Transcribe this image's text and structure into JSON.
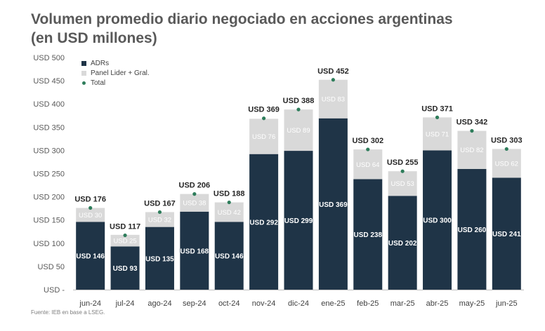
{
  "title_line1": "Volumen promedio diario negociado en acciones argentinas",
  "title_line2": "(en USD millones)",
  "source": "Fuente: IEB en base a LSEG.",
  "colors": {
    "adrs": "#1f3447",
    "panel": "#d9d9d9",
    "total": "#2e7d5b"
  },
  "chart_data": {
    "type": "bar",
    "stacked": true,
    "categories": [
      "jun-24",
      "jul-24",
      "ago-24",
      "sep-24",
      "oct-24",
      "nov-24",
      "dic-24",
      "ene-25",
      "feb-25",
      "mar-25",
      "abr-25",
      "may-25",
      "jun-25"
    ],
    "series": [
      {
        "name": "ADRs",
        "values": [
          146,
          93,
          135,
          168,
          146,
          292,
          299,
          369,
          238,
          202,
          300,
          260,
          241
        ]
      },
      {
        "name": "Panel Lider + Gral.",
        "values": [
          30,
          25,
          32,
          38,
          42,
          76,
          89,
          83,
          64,
          53,
          71,
          82,
          62
        ]
      },
      {
        "name": "Total",
        "values": [
          176,
          117,
          167,
          206,
          188,
          369,
          388,
          452,
          302,
          255,
          371,
          342,
          303
        ]
      }
    ],
    "y_ticks": [
      0,
      50,
      100,
      150,
      200,
      250,
      300,
      350,
      400,
      450,
      500
    ],
    "y_tick_labels": [
      "USD -",
      "USD 50",
      "USD 100",
      "USD 150",
      "USD 200",
      "USD 250",
      "USD 300",
      "USD 350",
      "USD 400",
      "USD 450",
      "USD 500"
    ],
    "total_label_prefix": "USD ",
    "ylim": [
      0,
      500
    ],
    "legend_position": "top-left",
    "grid": false
  }
}
